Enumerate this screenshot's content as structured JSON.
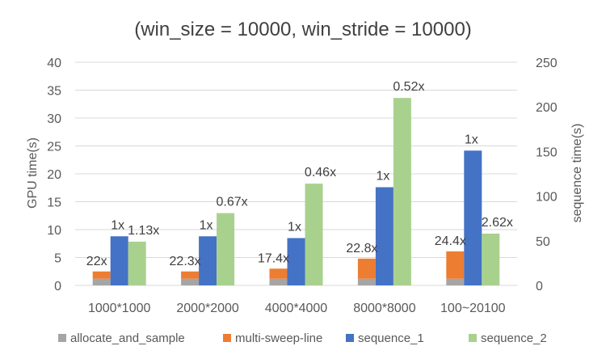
{
  "chart_data": {
    "type": "bar",
    "title": "(win_size = 10000, win_stride = 10000)",
    "categories": [
      "1000*1000",
      "2000*2000",
      "4000*4000",
      "8000*8000",
      "100~20100"
    ],
    "y_left": {
      "label": "GPU time(s)",
      "ylim": [
        0,
        40
      ],
      "ticks": [
        0,
        5,
        10,
        15,
        20,
        25,
        30,
        35,
        40
      ]
    },
    "y_right": {
      "label": "sequence time(s)",
      "ylim": [
        0,
        250
      ],
      "ticks": [
        0,
        50,
        100,
        150,
        200,
        250
      ]
    },
    "grid": true,
    "legend_position": "bottom",
    "series": [
      {
        "name": "allocate_and_sample",
        "color": "#a5a5a5",
        "axis": "left",
        "stack": "gpu",
        "values": [
          1.2,
          1.2,
          1.2,
          1.2,
          1.2
        ]
      },
      {
        "name": "multi-sweep-line",
        "color": "#ed7d31",
        "axis": "left",
        "stack": "gpu",
        "values": [
          1.3,
          1.3,
          1.8,
          3.6,
          4.9
        ]
      },
      {
        "name": "sequence_1",
        "color": "#4472c4",
        "axis": "right",
        "values": [
          55,
          55,
          53,
          110,
          151
        ],
        "labels": [
          "1x",
          "1x",
          "1x",
          "1x",
          "1x"
        ]
      },
      {
        "name": "sequence_2",
        "color": "#a9d18e",
        "axis": "right",
        "values": [
          49,
          81,
          114,
          210,
          58
        ],
        "labels": [
          "1.13x",
          "0.67x",
          "0.46x",
          "0.52x",
          "2.62x"
        ]
      }
    ],
    "stack_labels": [
      "22x",
      "22.3x",
      "17.4x",
      "22.8x",
      "24.4x"
    ]
  }
}
